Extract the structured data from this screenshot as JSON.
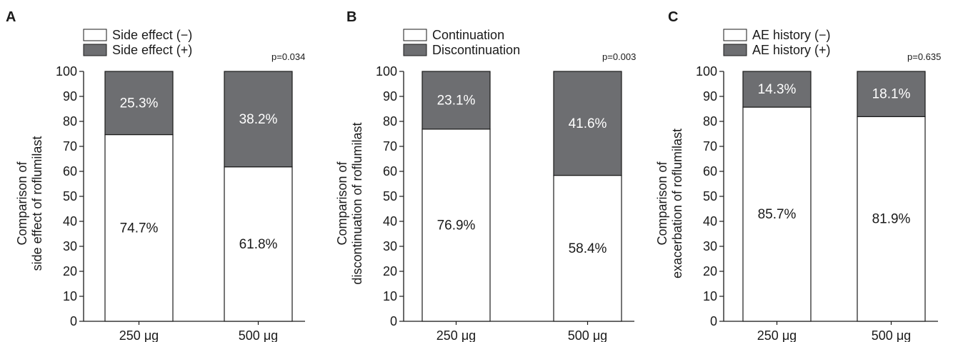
{
  "colors": {
    "bar_positive": "#6d6e71",
    "bar_negative": "#ffffff",
    "axis": "#1a1a1a"
  },
  "chart_data": [
    {
      "panel": "A",
      "type": "bar",
      "stacked": true,
      "ylabel_lines": [
        "Comparison of",
        "side effect of roflumilast"
      ],
      "categories": [
        "250 μg",
        "500 μg"
      ],
      "ylim": [
        0,
        100
      ],
      "yticks": [
        "0",
        "10",
        "20",
        "30",
        "40",
        "50",
        "60",
        "70",
        "80",
        "90",
        "100"
      ],
      "pvalue": "p=0.034",
      "series": [
        {
          "name": "Side effect (−)",
          "values": [
            74.7,
            61.8
          ],
          "labels": [
            "74.7%",
            "61.8%"
          ]
        },
        {
          "name": "Side effect (+)",
          "values": [
            25.3,
            38.2
          ],
          "labels": [
            "25.3%",
            "38.2%"
          ]
        }
      ]
    },
    {
      "panel": "B",
      "type": "bar",
      "stacked": true,
      "ylabel_lines": [
        "Comparison of",
        "discontinuation of roflumilast"
      ],
      "categories": [
        "250 μg",
        "500 μg"
      ],
      "ylim": [
        0,
        100
      ],
      "yticks": [
        "0",
        "10",
        "20",
        "30",
        "40",
        "50",
        "60",
        "70",
        "80",
        "90",
        "100"
      ],
      "pvalue": "p=0.003",
      "series": [
        {
          "name": "Continuation",
          "values": [
            76.9,
            58.4
          ],
          "labels": [
            "76.9%",
            "58.4%"
          ]
        },
        {
          "name": "Discontinuation",
          "values": [
            23.1,
            41.6
          ],
          "labels": [
            "23.1%",
            "41.6%"
          ]
        }
      ]
    },
    {
      "panel": "C",
      "type": "bar",
      "stacked": true,
      "ylabel_lines": [
        "Comparison of",
        "exacerbation of roflumilast"
      ],
      "categories": [
        "250 μg",
        "500 μg"
      ],
      "ylim": [
        0,
        100
      ],
      "yticks": [
        "0",
        "10",
        "20",
        "30",
        "40",
        "50",
        "60",
        "70",
        "80",
        "90",
        "100"
      ],
      "pvalue": "p=0.635",
      "series": [
        {
          "name": "AE history (−)",
          "values": [
            85.7,
            81.9
          ],
          "labels": [
            "85.7%",
            "81.9%"
          ]
        },
        {
          "name": "AE history (+)",
          "values": [
            14.3,
            18.1
          ],
          "labels": [
            "14.3%",
            "18.1%"
          ]
        }
      ]
    }
  ]
}
